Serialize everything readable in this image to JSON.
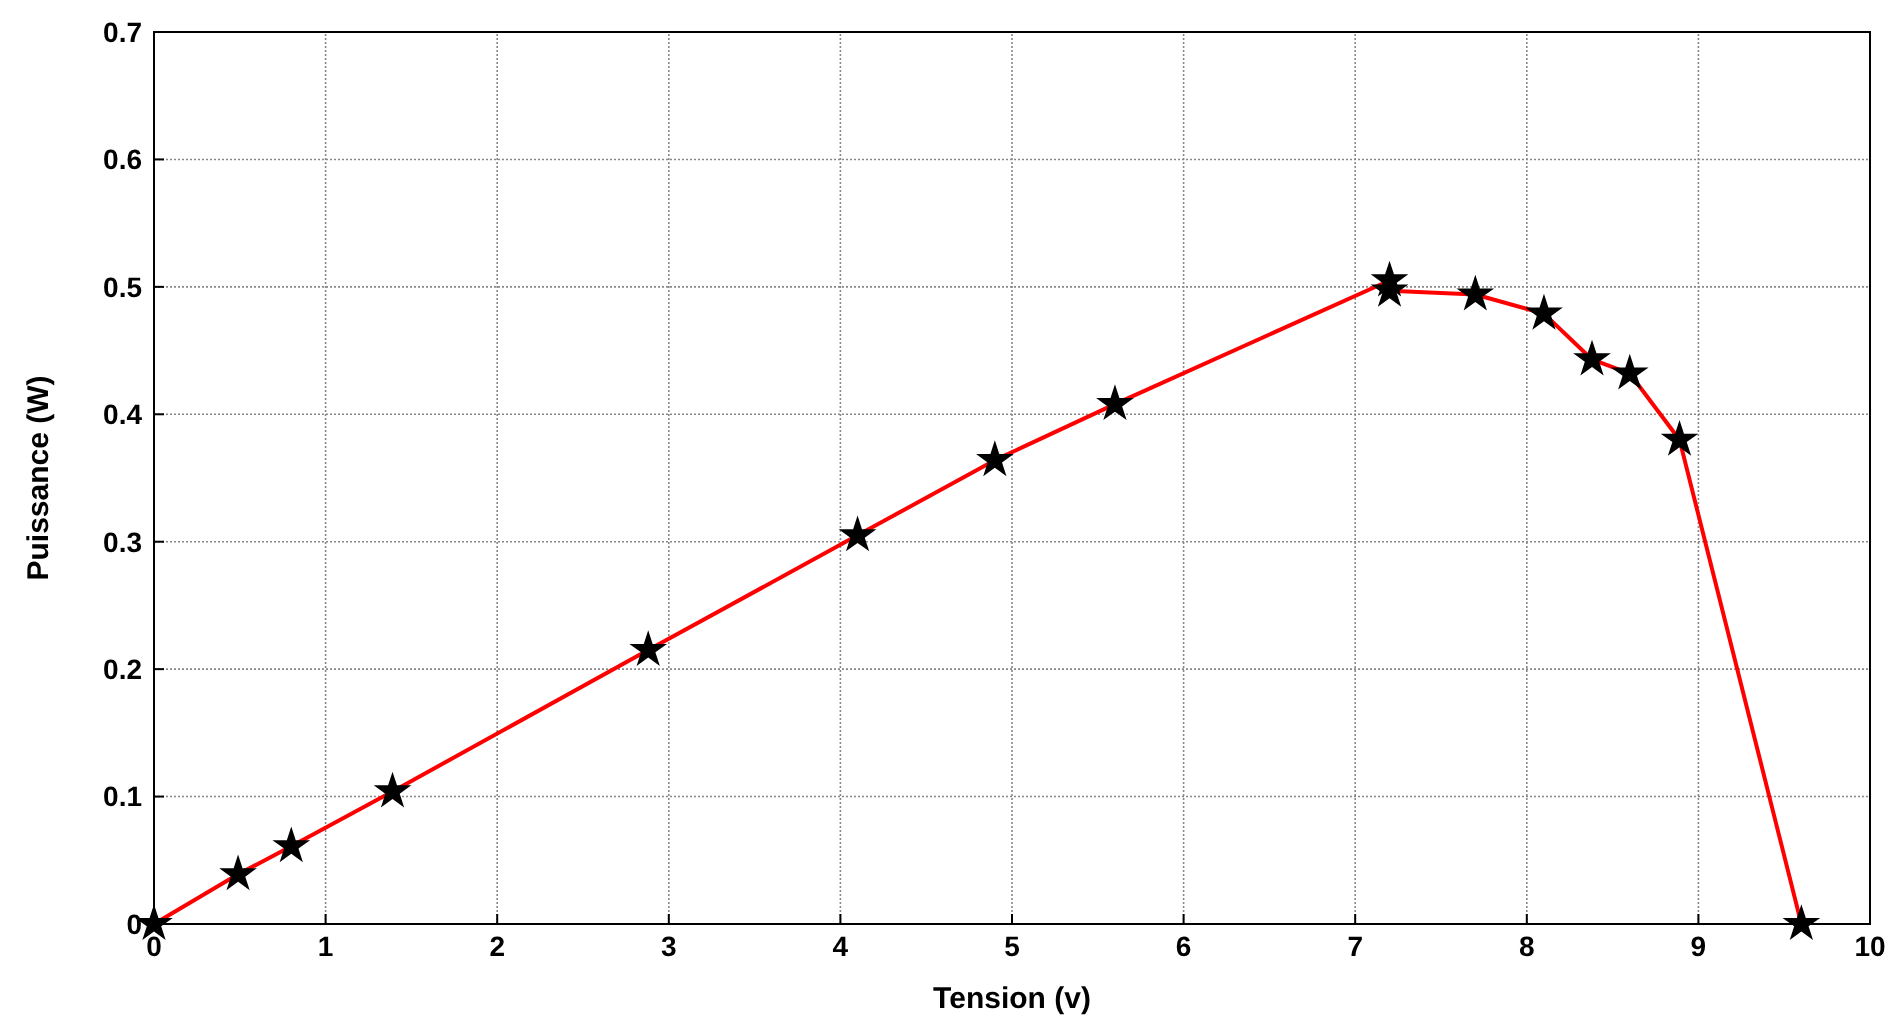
{
  "chart_data": {
    "type": "line",
    "xlabel": "Tension (v)",
    "ylabel": "Puissance (W)",
    "x": [
      0,
      0.49,
      0.8,
      1.39,
      2.88,
      4.1,
      4.9,
      5.6,
      7.2,
      7.2,
      7.7,
      8.1,
      8.38,
      8.6,
      8.89,
      9.6
    ],
    "series": [
      {
        "color": "#ff0000",
        "values": [
          0,
          0.039,
          0.061,
          0.104,
          0.215,
          0.305,
          0.364,
          0.408,
          0.505,
          0.497,
          0.494,
          0.479,
          0.443,
          0.432,
          0.38,
          0
        ]
      }
    ],
    "xlim": [
      0,
      10
    ],
    "xticks": [
      0,
      1,
      2,
      3,
      4,
      5,
      6,
      7,
      8,
      9,
      10
    ],
    "ylim": [
      0,
      0.7
    ],
    "yticks": [
      0,
      0.1,
      0.2,
      0.3,
      0.4,
      0.5,
      0.6,
      0.7
    ],
    "grid": true,
    "marker": "star",
    "line_style": "solid"
  }
}
